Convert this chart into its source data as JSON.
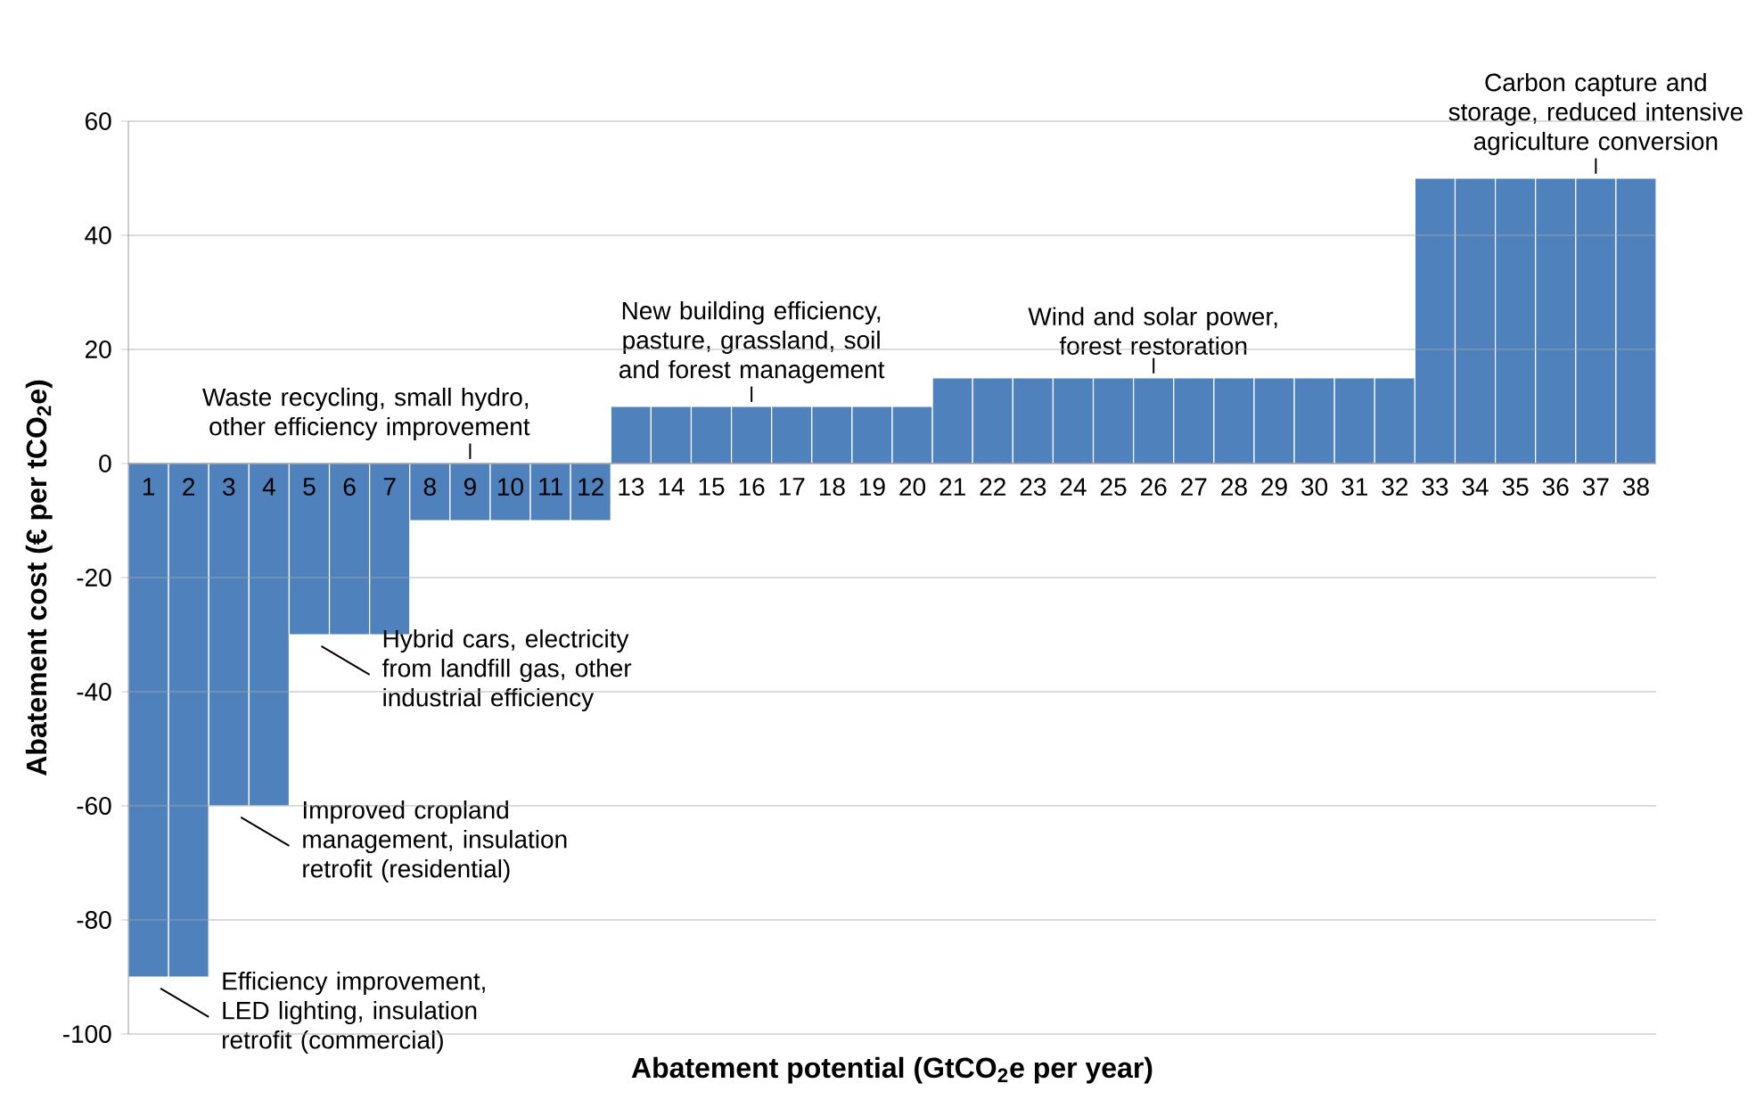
{
  "chart_data": {
    "type": "bar",
    "xlabel": "Abatement potential (GtCO$_{2}$e per year)",
    "ylabel": "Abatement cost (€ per tCO$_{2}$e)",
    "categories": [
      "1",
      "2",
      "3",
      "4",
      "5",
      "6",
      "7",
      "8",
      "9",
      "10",
      "11",
      "12",
      "13",
      "14",
      "15",
      "16",
      "17",
      "18",
      "19",
      "20",
      "21",
      "22",
      "23",
      "24",
      "25",
      "26",
      "27",
      "28",
      "29",
      "30",
      "31",
      "32",
      "33",
      "34",
      "35",
      "36",
      "37",
      "38"
    ],
    "values": [
      -90,
      -90,
      -60,
      -60,
      -30,
      -30,
      -30,
      -10,
      -10,
      -10,
      -10,
      -10,
      10,
      10,
      10,
      10,
      10,
      10,
      10,
      10,
      15,
      15,
      15,
      15,
      15,
      15,
      15,
      15,
      15,
      15,
      15,
      15,
      50,
      50,
      50,
      50,
      50,
      50
    ],
    "color": "#4f81bd",
    "ylim": [
      -100,
      60
    ],
    "yticks": [
      -100,
      -80,
      -60,
      -40,
      -20,
      0,
      20,
      40,
      60
    ],
    "grid": "y",
    "annotations": [
      {
        "text": "Efficiency improvement, LED lighting, insulation retrofit (commercial)",
        "x": "1",
        "y": -90
      },
      {
        "text": "Improved cropland management, insulation retrofit (residential)",
        "x": "3",
        "y": -60
      },
      {
        "text": "Hybrid cars, electricity from landfill gas, other industrial efficiency",
        "x": "5",
        "y": -30
      },
      {
        "text": "Waste recycling, small hydro, other efficiency improvement",
        "x": "9",
        "y": 0
      },
      {
        "text": "New building efficiency, pasture, grassland, soil and forest management",
        "x": "16",
        "y": 10
      },
      {
        "text": "Wind and solar power, forest restoration",
        "x": "26",
        "y": 15
      },
      {
        "text": "Carbon capture and storage, reduced intensive agriculture conversion",
        "x": "37",
        "y": 50
      }
    ]
  }
}
